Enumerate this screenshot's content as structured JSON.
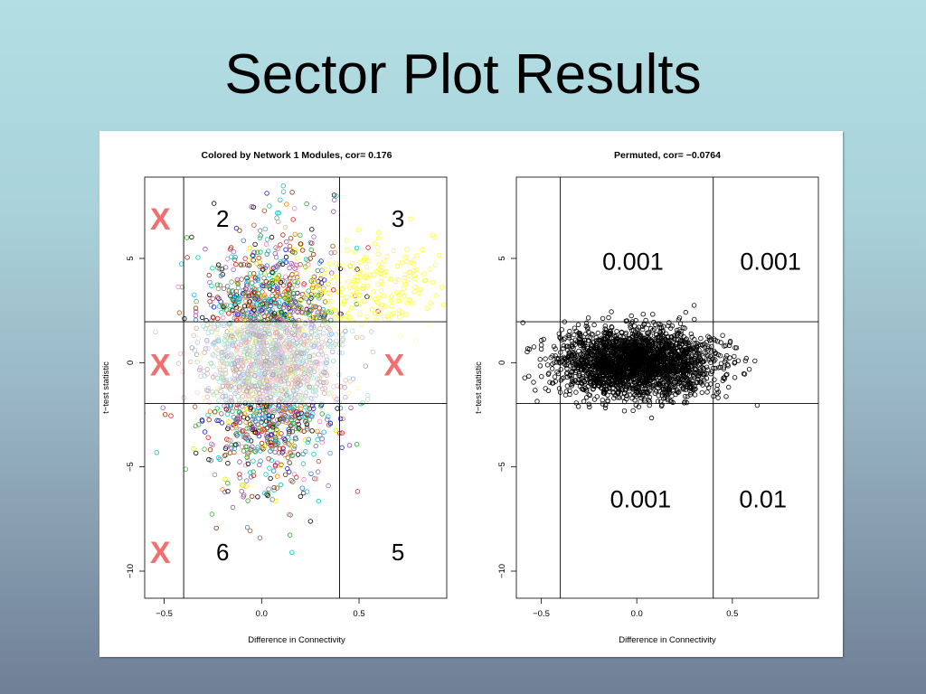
{
  "slide": {
    "title": "Sector Plot Results"
  },
  "chart_data": [
    {
      "type": "scatter",
      "title": "Colored by Network 1 Modules, cor= 0.176",
      "xlabel": "Difference in Connectivity",
      "ylabel": "t−test statistic",
      "xlim": [
        -0.6,
        0.95
      ],
      "ylim": [
        -11.3,
        8.9
      ],
      "x_ticks": [
        {
          "value": -0.5,
          "label": "−0.5"
        },
        {
          "value": 0.0,
          "label": "0.0"
        },
        {
          "value": 0.5,
          "label": "0.5"
        }
      ],
      "y_ticks": [
        {
          "value": 5,
          "label": "5"
        },
        {
          "value": 0,
          "label": "0"
        },
        {
          "value": -5,
          "label": "−5"
        },
        {
          "value": -10,
          "label": "−10"
        }
      ],
      "vertical_lines_x": [
        -0.4,
        0.4
      ],
      "horizontal_lines_y": [
        1.96,
        -1.96
      ],
      "middle_band_faded": true,
      "sector_labels": [
        {
          "text": "2",
          "x": -0.2,
          "y": 6.9
        },
        {
          "text": "3",
          "x": 0.7,
          "y": 6.9
        },
        {
          "text": "6",
          "x": -0.2,
          "y": -9.1
        },
        {
          "text": "5",
          "x": 0.7,
          "y": -9.1
        }
      ],
      "excluded_marks": [
        {
          "text": "X",
          "x": -0.52,
          "y": 6.9
        },
        {
          "text": "X",
          "x": -0.52,
          "y": -0.1
        },
        {
          "text": "X",
          "x": 0.68,
          "y": -0.1
        },
        {
          "text": "X",
          "x": -0.52,
          "y": -9.1
        }
      ],
      "module_colors": [
        "#e41a1c",
        "#377eb8",
        "#4daf4a",
        "#984ea3",
        "#ff7f00",
        "#e6e600",
        "#a65628",
        "#f781bf",
        "#1b1bd0",
        "#17becf",
        "#000000",
        "#8c2d04",
        "#2ca02c",
        "#9467bd",
        "#00cccc"
      ],
      "point_clouds": [
        {
          "color": "mixed",
          "center_x": 0.05,
          "center_y": 0.3,
          "sd_x": 0.17,
          "sd_y": 2.8,
          "count": 2300
        },
        {
          "color": "#ffff33",
          "center_x": 0.55,
          "center_y": 3.6,
          "sd_x": 0.17,
          "sd_y": 1.1,
          "count": 210
        }
      ],
      "marker": "open-circle"
    },
    {
      "type": "scatter",
      "title": "Permuted, cor= −0.0764",
      "xlabel": "Difference in Connectivity",
      "ylabel": "t−test statistic",
      "xlim": [
        -0.63,
        0.95
      ],
      "ylim": [
        -11.3,
        8.9
      ],
      "x_ticks": [
        {
          "value": -0.5,
          "label": "−0.5"
        },
        {
          "value": 0.0,
          "label": "0.0"
        },
        {
          "value": 0.5,
          "label": "0.5"
        }
      ],
      "y_ticks": [
        {
          "value": 5,
          "label": "5"
        },
        {
          "value": 0,
          "label": "0"
        },
        {
          "value": -5,
          "label": "−5"
        },
        {
          "value": -10,
          "label": "−10"
        }
      ],
      "vertical_lines_x": [
        -0.4,
        0.4
      ],
      "horizontal_lines_y": [
        1.96,
        -1.96
      ],
      "sector_pvalues": [
        {
          "text": "0.001",
          "x": -0.02,
          "y": 4.9
        },
        {
          "text": "0.001",
          "x": 0.7,
          "y": 4.9
        },
        {
          "text": "0.001",
          "x": 0.02,
          "y": -6.5
        },
        {
          "text": "0.01",
          "x": 0.66,
          "y": -6.5
        }
      ],
      "point_clouds": [
        {
          "color": "#000000",
          "center_x": 0.0,
          "center_y": 0.0,
          "sd_x": 0.2,
          "sd_y": 0.78,
          "count": 2600
        }
      ],
      "marker": "open-circle"
    }
  ]
}
